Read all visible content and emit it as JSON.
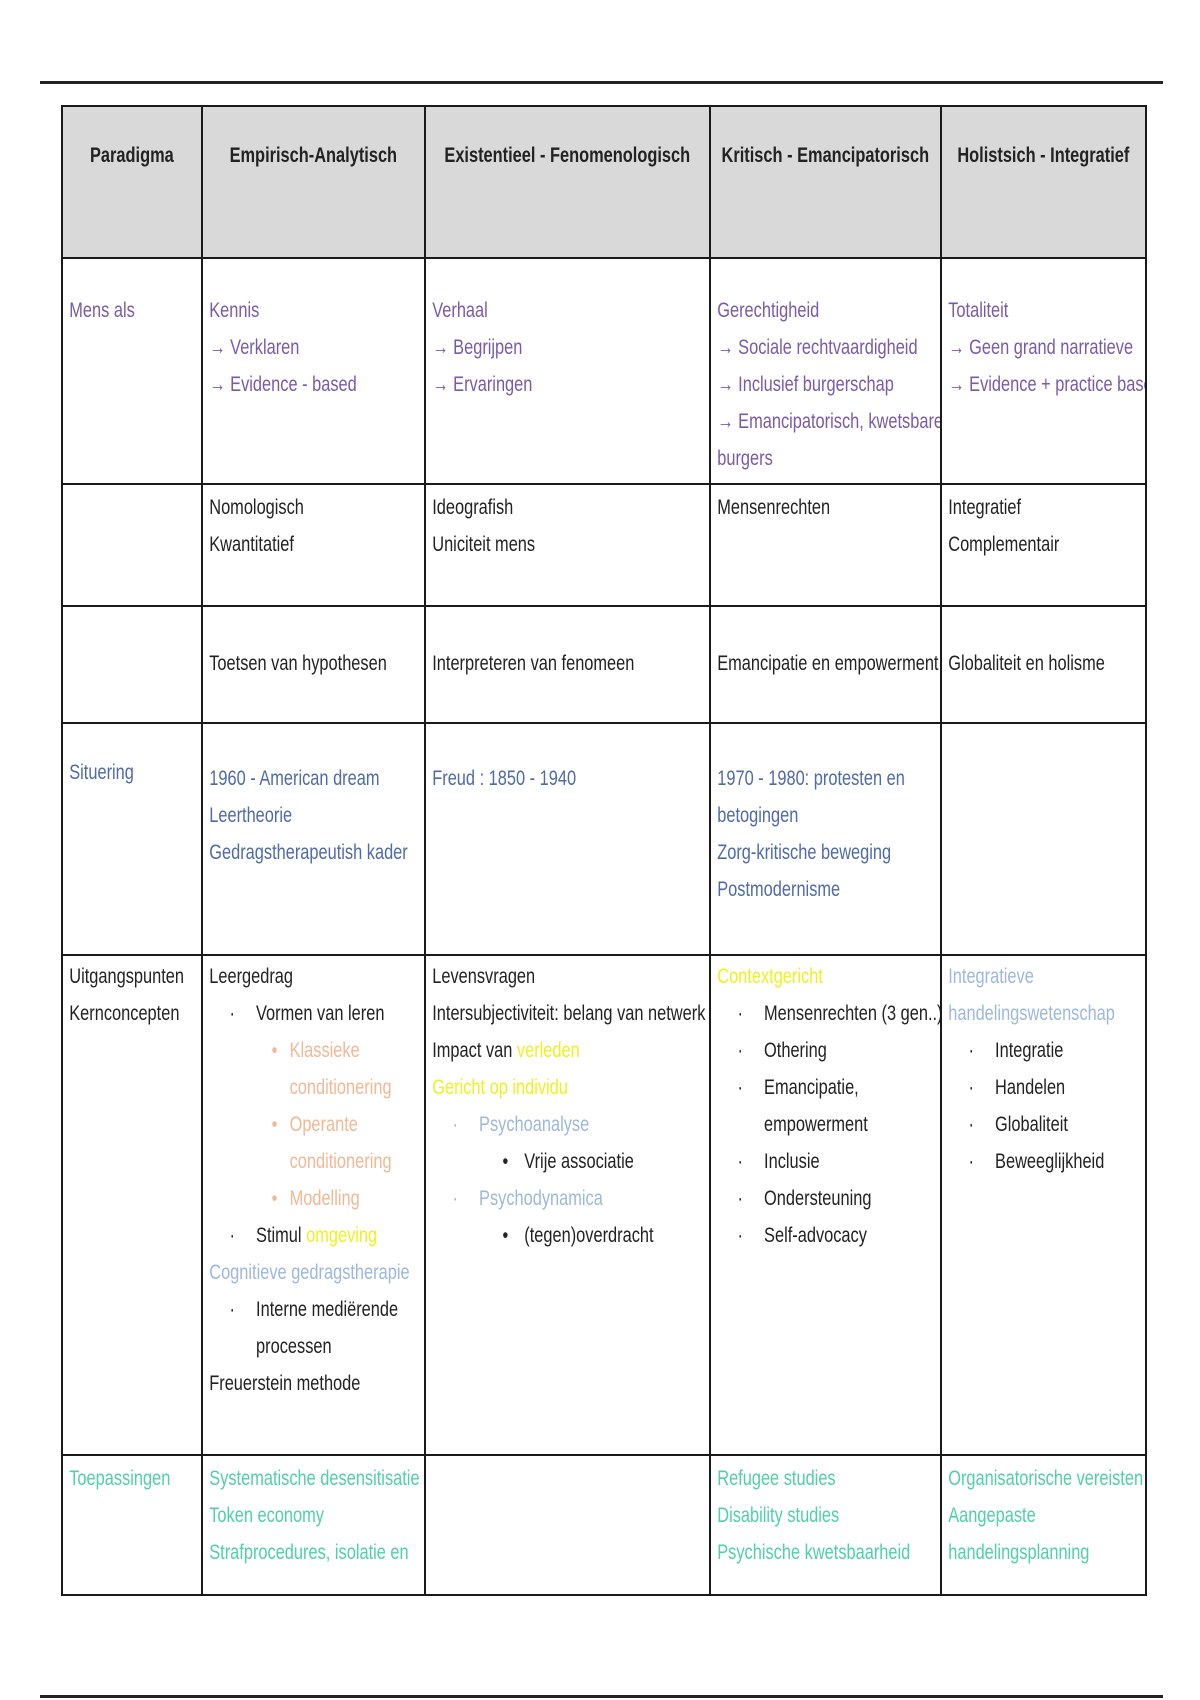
{
  "colors": {
    "purple": "#7a5aa6",
    "blue": "#4f6aa6",
    "green": "#4fd0a6",
    "orange": "#f2b896",
    "lightblue": "#9db8dc",
    "yellow": "#f0f020",
    "black": "#222222"
  },
  "header": [
    "Paradigma",
    "Empirisch-Analytisch",
    "Existentieel - Fenomenologisch",
    "Kritisch - Emancipatorisch",
    "Holistsich - Integratief"
  ],
  "rows": [
    {
      "pad": [
        33,
        33,
        33,
        33,
        33
      ],
      "height": 226,
      "cells": [
        [
          {
            "segs": [
              {
                "t": "Mens als",
                "c": "purple"
              }
            ]
          }
        ],
        [
          {
            "segs": [
              {
                "t": "Kennis",
                "c": "purple"
              }
            ]
          },
          {
            "segs": [
              {
                "t": "→ Verklaren",
                "c": "purple"
              }
            ]
          },
          {
            "segs": [
              {
                "t": "→ Evidence - based",
                "c": "purple"
              }
            ]
          }
        ],
        [
          {
            "segs": [
              {
                "t": "Verhaal",
                "c": "purple"
              }
            ]
          },
          {
            "segs": [
              {
                "t": "→ Begrijpen",
                "c": "purple"
              }
            ]
          },
          {
            "segs": [
              {
                "t": "→ Ervaringen",
                "c": "purple"
              }
            ]
          }
        ],
        [
          {
            "segs": [
              {
                "t": "Gerechtigheid",
                "c": "purple"
              }
            ]
          },
          {
            "segs": [
              {
                "t": "→ Sociale rechtvaardigheid",
                "c": "purple"
              }
            ]
          },
          {
            "segs": [
              {
                "t": "→ Inclusief burgerschap",
                "c": "purple"
              }
            ]
          },
          {
            "segs": [
              {
                "t": "→ Emancipatorisch, kwetsbare",
                "c": "purple"
              }
            ]
          },
          {
            "segs": [
              {
                "t": "burgers",
                "c": "purple"
              }
            ]
          }
        ],
        [
          {
            "segs": [
              {
                "t": "Totaliteit",
                "c": "purple"
              }
            ]
          },
          {
            "segs": [
              {
                "t": "→ Geen grand narratieve",
                "c": "purple"
              }
            ]
          },
          {
            "segs": [
              {
                "t": "→ Evidence + practice based",
                "c": "purple"
              }
            ]
          }
        ]
      ]
    },
    {
      "pad": [
        4,
        4,
        4,
        4,
        4
      ],
      "height": 122,
      "cells": [
        [],
        [
          {
            "segs": [
              {
                "t": "Nomologisch",
                "c": "black"
              }
            ]
          },
          {
            "segs": [
              {
                "t": "Kwantitatief",
                "c": "black"
              }
            ]
          }
        ],
        [
          {
            "segs": [
              {
                "t": "Ideografish",
                "c": "black"
              }
            ]
          },
          {
            "segs": [
              {
                "t": "Uniciteit mens",
                "c": "black"
              }
            ]
          }
        ],
        [
          {
            "segs": [
              {
                "t": "Mensenrechten",
                "c": "black"
              }
            ]
          }
        ],
        [
          {
            "segs": [
              {
                "t": "Integratief",
                "c": "black"
              }
            ]
          },
          {
            "segs": [
              {
                "t": "Complementair",
                "c": "black"
              }
            ]
          }
        ]
      ]
    },
    {
      "pad": [
        38,
        38,
        38,
        38,
        38
      ],
      "height": 117,
      "cells": [
        [],
        [
          {
            "segs": [
              {
                "t": "Toetsen van hypothesen",
                "c": "black"
              }
            ]
          }
        ],
        [
          {
            "segs": [
              {
                "t": "Interpreteren van fenomeen",
                "c": "black"
              }
            ]
          }
        ],
        [
          {
            "segs": [
              {
                "t": "Emancipatie en empowerment",
                "c": "black"
              }
            ]
          }
        ],
        [
          {
            "segs": [
              {
                "t": "Globaliteit en holisme",
                "c": "black"
              }
            ]
          }
        ]
      ]
    },
    {
      "pad": [
        30,
        36,
        36,
        36,
        36
      ],
      "height": 232,
      "cells": [
        [
          {
            "segs": [
              {
                "t": "Situering",
                "c": "blue"
              }
            ]
          }
        ],
        [
          {
            "segs": [
              {
                "t": "1960 - American dream",
                "c": "blue"
              }
            ]
          },
          {
            "segs": [
              {
                "t": "Leertheorie",
                "c": "blue"
              }
            ]
          },
          {
            "segs": [
              {
                "t": "Gedragstherapeutish kader",
                "c": "blue"
              }
            ]
          }
        ],
        [
          {
            "segs": [
              {
                "t": "Freud : 1850 - 1940",
                "c": "blue"
              }
            ]
          }
        ],
        [
          {
            "segs": [
              {
                "t": "1970 - 1980: protesten en",
                "c": "blue"
              }
            ]
          },
          {
            "segs": [
              {
                "t": "betogingen",
                "c": "blue"
              }
            ]
          },
          {
            "segs": [
              {
                "t": "Zorg-kritische beweging",
                "c": "blue"
              }
            ]
          },
          {
            "segs": [
              {
                "t": "Postmodernisme",
                "c": "blue"
              }
            ]
          }
        ],
        []
      ]
    },
    {
      "pad": [
        2,
        2,
        2,
        2,
        2
      ],
      "height": 500,
      "cells": [
        [
          {
            "segs": [
              {
                "t": "Uitgangspunten",
                "c": "black"
              }
            ]
          },
          {
            "segs": [
              {
                "t": "Kernconcepten",
                "c": "black"
              }
            ]
          }
        ],
        [
          {
            "segs": [
              {
                "t": "Leergedrag",
                "c": "black"
              }
            ]
          },
          {
            "level": 1,
            "bullet": "·",
            "bc": "black",
            "segs": [
              {
                "t": "Vormen van leren",
                "c": "black"
              }
            ]
          },
          {
            "level": 2,
            "bullet": "•",
            "bc": "orange",
            "segs": [
              {
                "t": "Klassieke",
                "c": "orange"
              }
            ]
          },
          {
            "level": 2,
            "segs": [
              {
                "t": "conditionering",
                "c": "orange"
              }
            ]
          },
          {
            "level": 2,
            "bullet": "•",
            "bc": "orange",
            "segs": [
              {
                "t": "Operante",
                "c": "orange"
              }
            ]
          },
          {
            "level": 2,
            "segs": [
              {
                "t": "conditionering",
                "c": "orange"
              }
            ]
          },
          {
            "level": 2,
            "bullet": "•",
            "bc": "orange",
            "segs": [
              {
                "t": "Modelling",
                "c": "orange"
              }
            ]
          },
          {
            "level": 1,
            "bullet": "·",
            "bc": "black",
            "segs": [
              {
                "t": "Stimul ",
                "c": "black"
              },
              {
                "t": "omgeving",
                "c": "yellow"
              }
            ]
          },
          {
            "segs": [
              {
                "t": "Cognitieve gedragstherapie",
                "c": "lightblue"
              }
            ]
          },
          {
            "level": 1,
            "bullet": "·",
            "bc": "black",
            "segs": [
              {
                "t": "Interne mediërende",
                "c": "black"
              }
            ]
          },
          {
            "level": 1,
            "segs": [
              {
                "t": "processen",
                "c": "black"
              }
            ]
          },
          {
            "segs": [
              {
                "t": "Freuerstein methode",
                "c": "black"
              }
            ]
          }
        ],
        [
          {
            "segs": [
              {
                "t": "Levensvragen",
                "c": "black"
              }
            ]
          },
          {
            "segs": [
              {
                "t": "Intersubjectiviteit: belang van netwerk",
                "c": "black"
              }
            ]
          },
          {
            "segs": [
              {
                "t": "Impact van ",
                "c": "black"
              },
              {
                "t": "verleden",
                "c": "yellow"
              }
            ]
          },
          {
            "segs": [
              {
                "t": "Gericht op individu",
                "c": "yellow"
              }
            ]
          },
          {
            "level": 1,
            "bullet": "·",
            "bc": "lightblue",
            "segs": [
              {
                "t": "Psychoanalyse",
                "c": "lightblue"
              }
            ]
          },
          {
            "level": 3,
            "bullet": "•",
            "bc": "black",
            "segs": [
              {
                "t": "Vrije associatie",
                "c": "black"
              }
            ]
          },
          {
            "level": 1,
            "bullet": "·",
            "bc": "lightblue",
            "segs": [
              {
                "t": "Psychodynamica",
                "c": "lightblue"
              }
            ]
          },
          {
            "level": 3,
            "bullet": "•",
            "bc": "black",
            "segs": [
              {
                "t": "(tegen)overdracht",
                "c": "black"
              }
            ]
          }
        ],
        [
          {
            "segs": [
              {
                "t": "Contextgericht",
                "c": "yellow"
              }
            ]
          },
          {
            "level": 1,
            "bullet": "·",
            "bc": "black",
            "segs": [
              {
                "t": "Mensenrechten (3 gen..)",
                "c": "black"
              }
            ]
          },
          {
            "level": 1,
            "bullet": "·",
            "bc": "black",
            "segs": [
              {
                "t": "Othering",
                "c": "black"
              }
            ]
          },
          {
            "level": 1,
            "bullet": "·",
            "bc": "black",
            "segs": [
              {
                "t": "Emancipatie,",
                "c": "black"
              }
            ]
          },
          {
            "level": 1,
            "segs": [
              {
                "t": "empowerment",
                "c": "black"
              }
            ]
          },
          {
            "level": 1,
            "bullet": "·",
            "bc": "black",
            "segs": [
              {
                "t": "Inclusie",
                "c": "black"
              }
            ]
          },
          {
            "level": 1,
            "bullet": "·",
            "bc": "black",
            "segs": [
              {
                "t": "Ondersteuning",
                "c": "black"
              }
            ]
          },
          {
            "level": 1,
            "bullet": "·",
            "bc": "black",
            "segs": [
              {
                "t": "Self-advocacy",
                "c": "black"
              }
            ]
          }
        ],
        [
          {
            "segs": [
              {
                "t": "Integratieve",
                "c": "lightblue"
              }
            ]
          },
          {
            "segs": [
              {
                "t": "handelingswetenschap",
                "c": "lightblue"
              }
            ]
          },
          {
            "level": 1,
            "bullet": "·",
            "bc": "black",
            "segs": [
              {
                "t": "Integratie",
                "c": "black"
              }
            ]
          },
          {
            "level": 1,
            "bullet": "·",
            "bc": "black",
            "segs": [
              {
                "t": "Handelen",
                "c": "black"
              }
            ]
          },
          {
            "level": 1,
            "bullet": "·",
            "bc": "black",
            "segs": [
              {
                "t": "Globaliteit",
                "c": "black"
              }
            ]
          },
          {
            "level": 1,
            "bullet": "·",
            "bc": "black",
            "segs": [
              {
                "t": "Beweeglijkheid",
                "c": "black"
              }
            ]
          }
        ]
      ]
    },
    {
      "pad": [
        4,
        4,
        4,
        4,
        4
      ],
      "height": 140,
      "cells": [
        [
          {
            "segs": [
              {
                "t": "Toepassingen",
                "c": "green"
              }
            ]
          }
        ],
        [
          {
            "segs": [
              {
                "t": "Systematische desensitisatie",
                "c": "green"
              }
            ]
          },
          {
            "segs": [
              {
                "t": "Token economy",
                "c": "green"
              }
            ]
          },
          {
            "segs": [
              {
                "t": "Strafprocedures, isolatie en",
                "c": "green"
              }
            ]
          }
        ],
        [],
        [
          {
            "segs": [
              {
                "t": "Refugee studies",
                "c": "green"
              }
            ]
          },
          {
            "segs": [
              {
                "t": "Disability studies",
                "c": "green"
              }
            ]
          },
          {
            "segs": [
              {
                "t": "Psychische kwetsbaarheid",
                "c": "green"
              }
            ]
          }
        ],
        [
          {
            "segs": [
              {
                "t": "Organisatorische vereisten",
                "c": "green"
              }
            ]
          },
          {
            "segs": [
              {
                "t": "Aangepaste",
                "c": "green"
              }
            ]
          },
          {
            "segs": [
              {
                "t": "handelingsplanning",
                "c": "green"
              }
            ]
          }
        ]
      ]
    }
  ]
}
